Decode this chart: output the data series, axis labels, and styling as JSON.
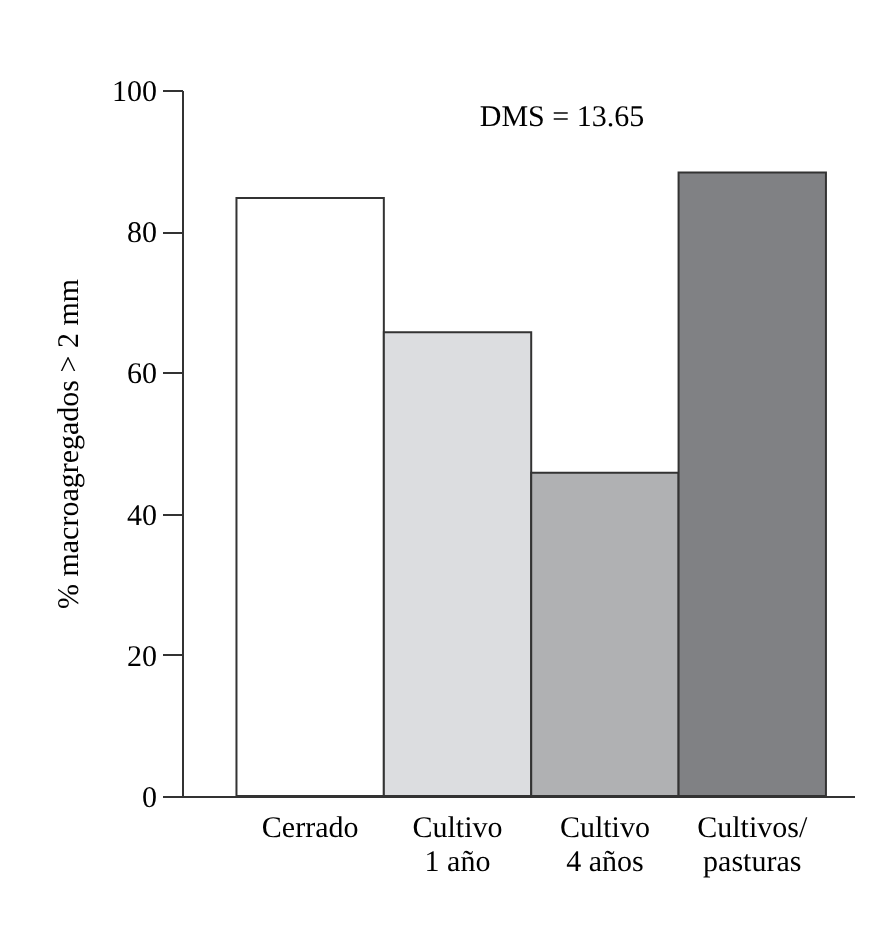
{
  "chart_data": {
    "type": "bar",
    "ylabel": "% macroagregados > 2 mm",
    "categories": [
      "Cerrado",
      "Cultivo 1 año",
      "Cultivo 4 años",
      "Cultivos/ pasturas"
    ],
    "values": [
      84.7,
      65.7,
      45.8,
      88.3
    ],
    "colors": [
      "#ffffff",
      "#dcdde0",
      "#b0b1b3",
      "#808184"
    ],
    "ylim": [
      0,
      100
    ],
    "yticks": [
      0,
      20,
      40,
      60,
      80,
      100
    ],
    "grid": false,
    "legend": false,
    "annotations": [
      "DMS = 13.65"
    ]
  }
}
